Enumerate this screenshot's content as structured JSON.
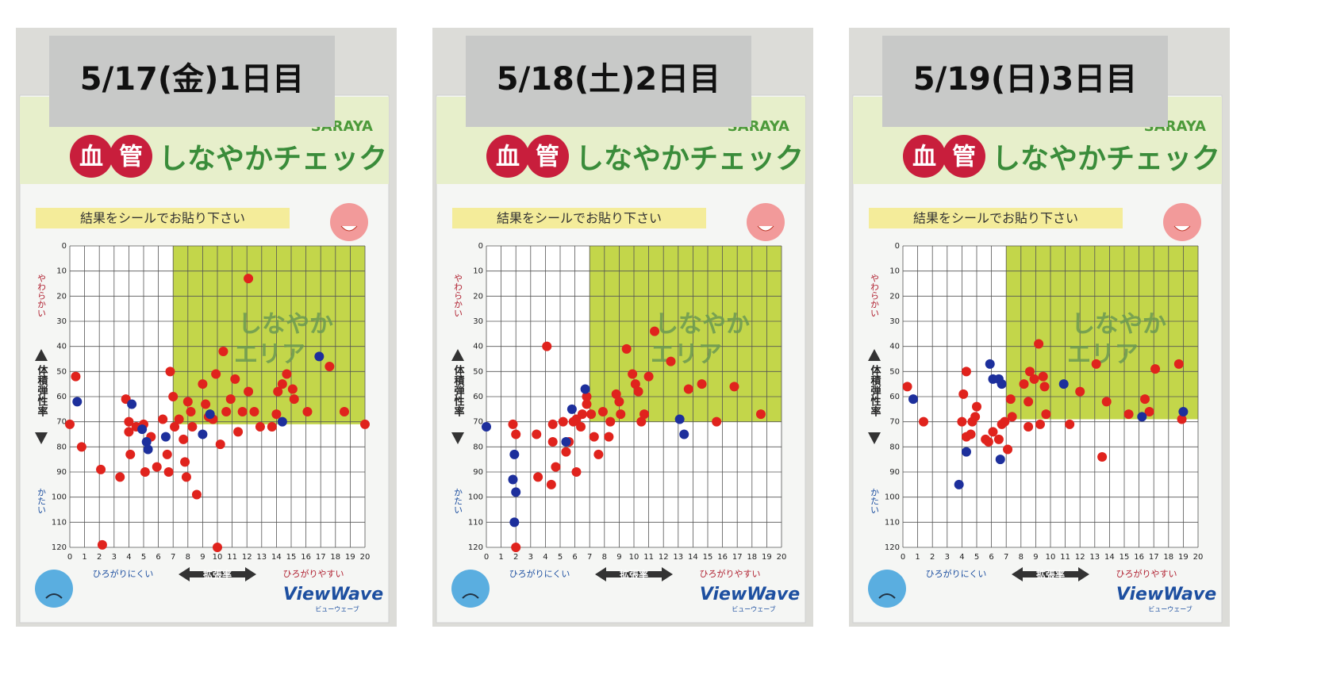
{
  "chart_data": [
    {
      "type": "scatter",
      "title": "5/17(金)1日目",
      "brand": "SARAYA",
      "badge": [
        "血",
        "管"
      ],
      "heading": "しなやかチェック",
      "instruction": "結果をシールでお貼り下さい",
      "area_label": [
        "しなやか",
        "エリア"
      ],
      "y_label_top": "やわらかい",
      "y_axis_label": "体積弾性率",
      "y_label_bottom": "かたい",
      "x_label_left": "ひろがりにくい",
      "x_axis_label": "拡張率",
      "x_label_right": "ひろがりやすい",
      "logo": "ViewWave",
      "logo_sub": "ビューウェーブ",
      "xlim": [
        0,
        20
      ],
      "ylim": [
        120,
        0
      ],
      "xticks": [
        0,
        1,
        2,
        3,
        4,
        5,
        6,
        7,
        8,
        9,
        10,
        11,
        12,
        13,
        14,
        15,
        16,
        17,
        18,
        19,
        20
      ],
      "yticks": [
        0,
        10,
        20,
        30,
        40,
        50,
        60,
        70,
        80,
        90,
        100,
        110,
        120
      ],
      "grid": true,
      "highlight": {
        "color": "#c3d64a",
        "x": [
          7,
          20
        ],
        "y": [
          0,
          71
        ]
      },
      "series": [
        {
          "color": "#e0231d",
          "x": [
            0,
            0.4,
            0.8,
            2.1,
            2.2,
            3.4,
            3.8,
            4,
            4,
            4.1,
            4.5,
            5,
            5.1,
            5.5,
            5.9,
            6.3,
            6.6,
            6.7,
            6.8,
            7,
            7.1,
            7.4,
            7.7,
            7.8,
            7.9,
            8,
            8.2,
            8.3,
            8.6,
            9,
            9.2,
            9.4,
            9.7,
            9.9,
            10,
            10.2,
            10.4,
            10.6,
            10.9,
            11.2,
            11.4,
            11.7,
            12.1,
            12.1,
            12.5,
            12.9,
            13.7,
            14,
            14.1,
            14.4,
            14.7,
            15.1,
            15.2,
            16.1,
            17.6,
            18.6,
            20
          ],
          "values": [
            71,
            52,
            80,
            89,
            119,
            92,
            61,
            70,
            74,
            83,
            72,
            71,
            90,
            76,
            88,
            69,
            83,
            90,
            50,
            60,
            72,
            69,
            77,
            86,
            92,
            62,
            66,
            72,
            99,
            55,
            63,
            68,
            69,
            51,
            120,
            79,
            42,
            66,
            61,
            53,
            74,
            66,
            58,
            13,
            66,
            72,
            72,
            67,
            58,
            55,
            51,
            57,
            61,
            66,
            48,
            66,
            71
          ]
        },
        {
          "color": "#1d2f9c",
          "x": [
            0.5,
            4.2,
            4.9,
            5.2,
            5.3,
            6.5,
            9,
            9.5,
            14.4,
            16.9
          ],
          "values": [
            62,
            63,
            73,
            78,
            81,
            76,
            75,
            67,
            70,
            44
          ]
        }
      ]
    },
    {
      "type": "scatter",
      "title": "5/18(土)2日目",
      "brand": "SARAYA",
      "badge": [
        "血",
        "管"
      ],
      "heading": "しなやかチェック",
      "instruction": "結果をシールでお貼り下さい",
      "area_label": [
        "しなやか",
        "エリア"
      ],
      "y_label_top": "やわらかい",
      "y_axis_label": "体積弾性率",
      "y_label_bottom": "かたい",
      "x_label_left": "ひろがりにくい",
      "x_axis_label": "拡張率",
      "x_label_right": "ひろがりやすい",
      "logo": "ViewWave",
      "logo_sub": "ビューウェーブ",
      "xlim": [
        0,
        20
      ],
      "ylim": [
        120,
        0
      ],
      "xticks": [
        0,
        1,
        2,
        3,
        4,
        5,
        6,
        7,
        8,
        9,
        10,
        11,
        12,
        13,
        14,
        15,
        16,
        17,
        18,
        19,
        20
      ],
      "yticks": [
        0,
        10,
        20,
        30,
        40,
        50,
        60,
        70,
        80,
        90,
        100,
        110,
        120
      ],
      "grid": true,
      "highlight": {
        "color": "#c3d64a",
        "x": [
          7,
          20
        ],
        "y": [
          0,
          70
        ]
      },
      "series": [
        {
          "color": "#e0231d",
          "x": [
            1.8,
            2,
            2,
            3.4,
            3.5,
            4.1,
            4.5,
            4.5,
            4.7,
            4.4,
            5.2,
            5.4,
            5.6,
            5.9,
            6.1,
            6.1,
            6.4,
            6.5,
            6.8,
            6.8,
            7.1,
            7.3,
            7.6,
            7.9,
            8.3,
            8.4,
            8.8,
            9,
            9.1,
            9.5,
            9.9,
            10.1,
            10.3,
            10.5,
            10.7,
            11,
            11.4,
            12.5,
            13.7,
            14.6,
            15.6,
            16.8,
            18.6
          ],
          "values": [
            71,
            75,
            120,
            75,
            92,
            40,
            71,
            78,
            88,
            95,
            70,
            82,
            78,
            70,
            69,
            90,
            72,
            67,
            63,
            60,
            67,
            76,
            83,
            66,
            76,
            70,
            59,
            62,
            67,
            41,
            51,
            55,
            58,
            70,
            67,
            52,
            34,
            46,
            57,
            55,
            70,
            56,
            67
          ]
        },
        {
          "color": "#1d2f9c",
          "x": [
            0,
            1.8,
            1.9,
            2,
            1.9,
            5.4,
            5.8,
            6.7,
            13.1,
            13.4
          ],
          "values": [
            72,
            93,
            83,
            98,
            110,
            78,
            65,
            57,
            69,
            75
          ]
        }
      ]
    },
    {
      "type": "scatter",
      "title": "5/19(日)3日目",
      "brand": "SARAYA",
      "badge": [
        "血",
        "管"
      ],
      "heading": "しなやかチェック",
      "instruction": "結果をシールでお貼り下さい",
      "area_label": [
        "しなやか",
        "エリア"
      ],
      "y_label_top": "やわらかい",
      "y_axis_label": "体積弾性率",
      "y_label_bottom": "かたい",
      "x_label_left": "ひろがりにくい",
      "x_axis_label": "拡張率",
      "x_label_right": "ひろがりやすい",
      "logo": "ViewWave",
      "logo_sub": "ビューウェーブ",
      "xlim": [
        0,
        20
      ],
      "ylim": [
        120,
        0
      ],
      "xticks": [
        0,
        1,
        2,
        3,
        4,
        5,
        6,
        7,
        8,
        9,
        10,
        11,
        12,
        13,
        14,
        15,
        16,
        17,
        18,
        19,
        20
      ],
      "yticks": [
        0,
        10,
        20,
        30,
        40,
        50,
        60,
        70,
        80,
        90,
        100,
        110,
        120
      ],
      "grid": true,
      "highlight": {
        "color": "#c3d64a",
        "x": [
          7,
          20
        ],
        "y": [
          0,
          69
        ]
      },
      "series": [
        {
          "color": "#e0231d",
          "x": [
            0.3,
            1.4,
            4,
            4.1,
            4.3,
            4.3,
            4.6,
            4.7,
            4.9,
            5,
            5.6,
            5.8,
            6.1,
            6.5,
            6.7,
            6.9,
            7.1,
            7.3,
            7.4,
            8.2,
            8.5,
            8.5,
            8.6,
            8.9,
            9.2,
            9.3,
            9.5,
            9.6,
            9.7,
            11.3,
            12,
            13.1,
            13.5,
            13.8,
            15.3,
            16.4,
            16.7,
            17.1,
            18.7,
            18.9
          ],
          "values": [
            56,
            70,
            70,
            59,
            50,
            76,
            75,
            70,
            68,
            64,
            77,
            78,
            74,
            77,
            71,
            70,
            81,
            61,
            68,
            55,
            62,
            72,
            50,
            53,
            39,
            71,
            52,
            56,
            67,
            71,
            58,
            47,
            84,
            62,
            67,
            61,
            66,
            49,
            47,
            69
          ]
        },
        {
          "color": "#1d2f9c",
          "x": [
            0.7,
            4.3,
            3.8,
            5.9,
            6.1,
            6.5,
            6.7,
            6.6,
            10.9,
            16.2,
            19
          ],
          "values": [
            61,
            82,
            95,
            47,
            53,
            53,
            55,
            85,
            55,
            68,
            66
          ]
        }
      ]
    }
  ]
}
